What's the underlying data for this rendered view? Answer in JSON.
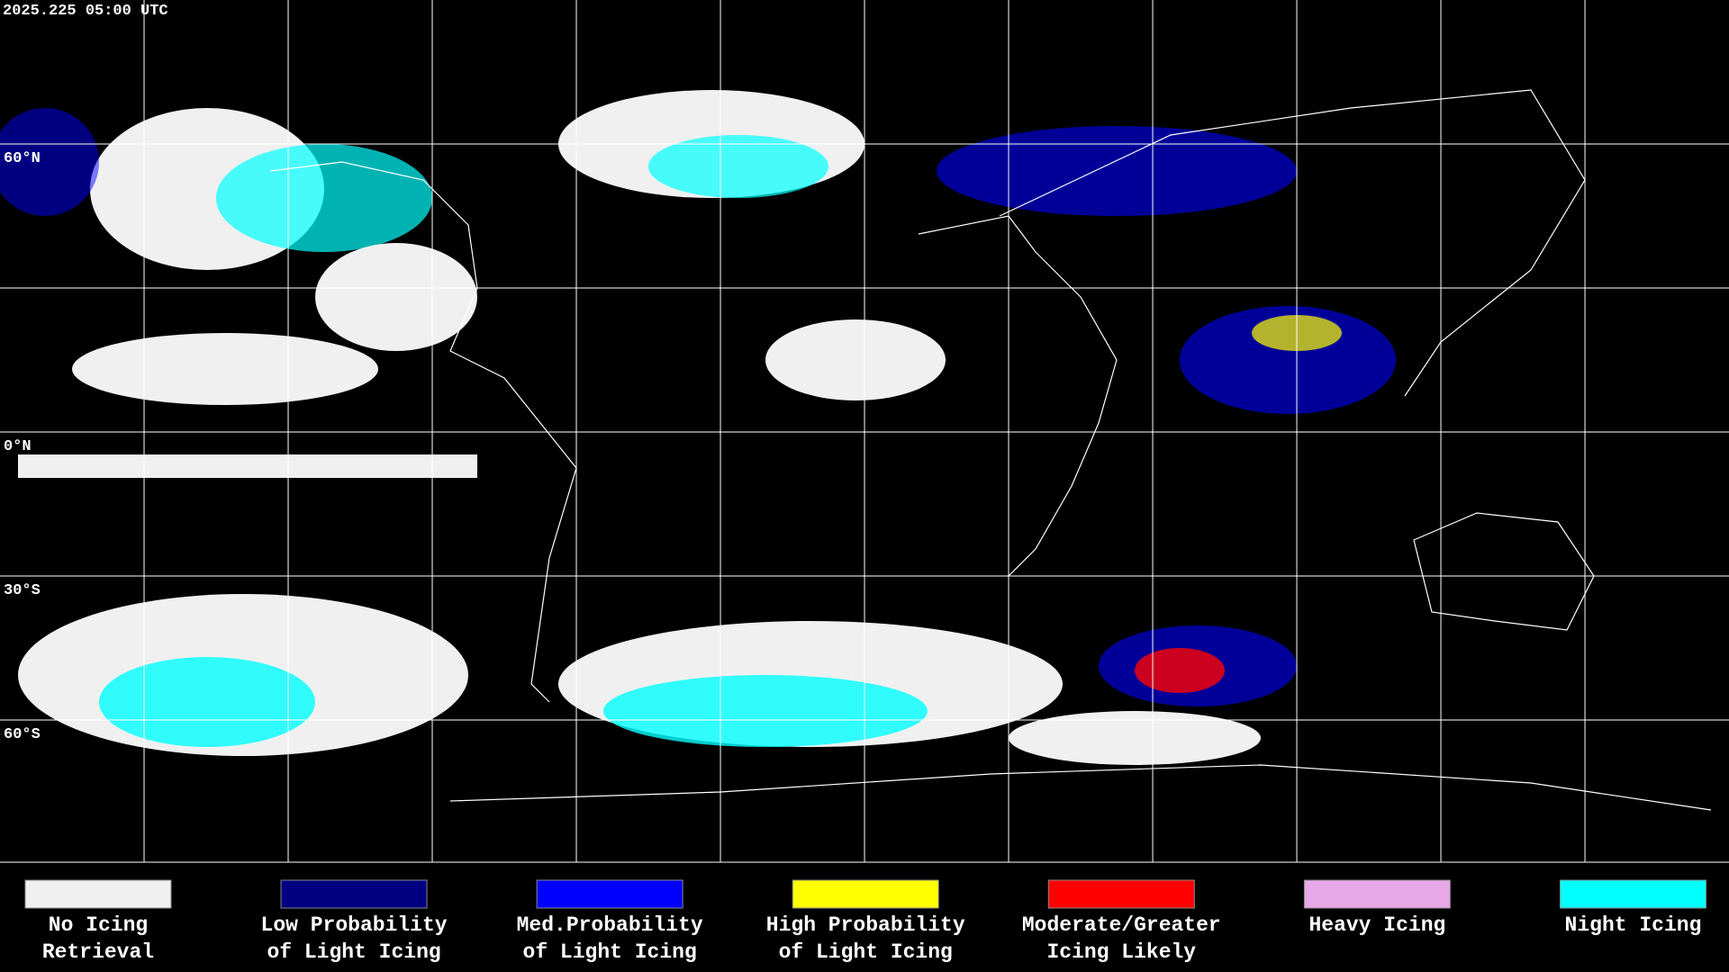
{
  "header": {
    "timestamp": "2025.225 05:00 UTC"
  },
  "map": {
    "latitude_labels": [
      "60°N",
      "0°N",
      "30°S",
      "60°S"
    ]
  },
  "legend": {
    "items": [
      {
        "color": "#f0f0f0",
        "lines": [
          "No Icing",
          "Retrieval"
        ]
      },
      {
        "color": "#000080",
        "lines": [
          "Low Probability",
          "of Light Icing"
        ]
      },
      {
        "color": "#0000ff",
        "lines": [
          "Med.Probability",
          "of Light Icing"
        ]
      },
      {
        "color": "#ffff00",
        "lines": [
          "High Probability",
          "of Light Icing"
        ]
      },
      {
        "color": "#ff0000",
        "lines": [
          "Moderate/Greater",
          "Icing Likely"
        ]
      },
      {
        "color": "#e8a8e8",
        "lines": [
          "Heavy Icing"
        ]
      },
      {
        "color": "#00ffff",
        "lines": [
          "Night Icing"
        ]
      }
    ]
  }
}
